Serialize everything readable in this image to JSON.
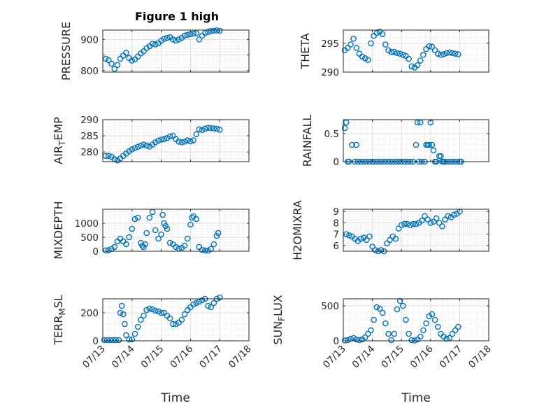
{
  "figure": {
    "title": "Figure 1 high",
    "time_label": "Time"
  },
  "date_ticks": [
    "07/13",
    "07/14",
    "07/15",
    "07/16",
    "07/17",
    "07/18"
  ],
  "chart_data": [
    {
      "type": "scatter",
      "id": "pressure",
      "ylabel_parts": [
        [
          "PRESSURE",
          null
        ]
      ],
      "ylim": [
        795,
        930
      ],
      "yticks": [
        800,
        850,
        900
      ],
      "ytick_labels": [
        "800",
        "",
        "900"
      ],
      "xlim": [
        0,
        5
      ],
      "grid": true,
      "minor_grid": true,
      "x": [
        0.1,
        0.2,
        0.3,
        0.4,
        0.5,
        0.6,
        0.7,
        0.8,
        0.9,
        1.0,
        1.1,
        1.2,
        1.3,
        1.4,
        1.5,
        1.6,
        1.7,
        1.8,
        1.9,
        2.0,
        2.1,
        2.2,
        2.3,
        2.4,
        2.5,
        2.6,
        2.7,
        2.8,
        2.9,
        3.0,
        3.1,
        3.2,
        3.3,
        3.4,
        3.5,
        3.6,
        3.7,
        3.8,
        3.9,
        4.0
      ],
      "y": [
        838,
        833,
        822,
        805,
        818,
        838,
        848,
        857,
        840,
        832,
        836,
        845,
        855,
        862,
        872,
        878,
        886,
        884,
        888,
        896,
        902,
        905,
        907,
        900,
        896,
        900,
        905,
        912,
        915,
        917,
        919,
        920,
        900,
        912,
        921,
        924,
        927,
        928,
        929,
        928
      ]
    },
    {
      "type": "scatter",
      "id": "theta",
      "ylabel_parts": [
        [
          "THETA",
          null
        ]
      ],
      "ylim": [
        290,
        297.3
      ],
      "yticks": [
        290,
        295
      ],
      "ytick_labels": [
        "290",
        "295"
      ],
      "xlim": [
        0,
        5
      ],
      "grid": true,
      "minor_grid": true,
      "x": [
        0.05,
        0.15,
        0.25,
        0.35,
        0.45,
        0.55,
        0.65,
        0.75,
        0.85,
        0.95,
        1.05,
        1.15,
        1.25,
        1.35,
        1.45,
        1.55,
        1.65,
        1.75,
        1.85,
        1.95,
        2.05,
        2.15,
        2.25,
        2.35,
        2.45,
        2.55,
        2.65,
        2.75,
        2.85,
        2.95,
        3.05,
        3.15,
        3.25,
        3.35,
        3.45,
        3.55,
        3.65,
        3.75,
        3.85,
        3.95
      ],
      "y": [
        293.8,
        294.2,
        294.8,
        295.8,
        294.2,
        293.2,
        292.7,
        292.4,
        292.1,
        295.0,
        296.3,
        296.8,
        297.0,
        296.6,
        294.8,
        293.8,
        293.5,
        293.5,
        293.3,
        293.2,
        293.0,
        292.8,
        292.3,
        291.0,
        290.8,
        291.2,
        292.0,
        293.0,
        294.0,
        294.5,
        294.4,
        293.8,
        293.2,
        293.0,
        293.1,
        293.3,
        293.4,
        293.3,
        293.2,
        293.1
      ]
    },
    {
      "type": "scatter",
      "id": "air_temp",
      "ylabel_parts": [
        [
          "AIR",
          null
        ],
        [
          "T",
          "sub"
        ],
        [
          "EMP",
          null
        ]
      ],
      "ylim": [
        277,
        290
      ],
      "yticks": [
        280,
        285,
        290
      ],
      "ytick_labels": [
        "280",
        "285",
        "290"
      ],
      "xlim": [
        0,
        5
      ],
      "grid": true,
      "minor_grid": true,
      "x": [
        0.1,
        0.2,
        0.3,
        0.4,
        0.5,
        0.6,
        0.7,
        0.8,
        0.9,
        1.0,
        1.1,
        1.2,
        1.3,
        1.4,
        1.5,
        1.6,
        1.7,
        1.8,
        1.9,
        2.0,
        2.1,
        2.2,
        2.3,
        2.4,
        2.5,
        2.6,
        2.7,
        2.8,
        2.9,
        3.0,
        3.1,
        3.2,
        3.3,
        3.4,
        3.5,
        3.6,
        3.7,
        3.8,
        3.9,
        4.0
      ],
      "y": [
        278.8,
        278.8,
        278.5,
        277.8,
        277.4,
        278.0,
        278.8,
        279.5,
        280.2,
        280.8,
        281.2,
        281.6,
        282.0,
        282.3,
        282.0,
        281.7,
        282.3,
        283.0,
        283.5,
        283.8,
        284.0,
        284.3,
        284.8,
        285.0,
        284.0,
        283.2,
        283.0,
        283.2,
        283.6,
        283.3,
        283.6,
        285.5,
        287.0,
        286.8,
        287.2,
        287.5,
        287.4,
        287.3,
        287.2,
        286.9
      ]
    },
    {
      "type": "scatter",
      "id": "rainfall",
      "ylabel_parts": [
        [
          "RAINFALL",
          null
        ]
      ],
      "ylim": [
        0,
        0.75
      ],
      "yticks": [
        0,
        0.5
      ],
      "ytick_labels": [
        "0",
        "0.5"
      ],
      "xlim": [
        0,
        5
      ],
      "grid": true,
      "minor_grid": true,
      "x": [
        0.05,
        0.1,
        0.15,
        0.2,
        0.3,
        0.4,
        0.45,
        0.5,
        0.6,
        0.7,
        0.8,
        0.9,
        1.0,
        1.1,
        1.2,
        1.3,
        1.4,
        1.5,
        1.6,
        1.7,
        1.8,
        1.9,
        2.0,
        2.1,
        2.2,
        2.3,
        2.4,
        2.5,
        2.55,
        2.6,
        2.65,
        2.7,
        2.8,
        2.85,
        2.9,
        2.95,
        3.0,
        3.05,
        3.1,
        3.15,
        3.2,
        3.3,
        3.35,
        3.4,
        3.45,
        3.5,
        3.6,
        3.7,
        3.8,
        3.9,
        4.0,
        4.05
      ],
      "y": [
        0.6,
        0.7,
        0,
        0,
        0.3,
        0,
        0.3,
        0,
        0,
        0,
        0,
        0,
        0,
        0,
        0,
        0,
        0,
        0,
        0,
        0,
        0,
        0,
        0,
        0,
        0,
        0,
        0,
        0.3,
        0.7,
        0,
        0.7,
        0,
        0,
        0.3,
        0.3,
        0.3,
        0.7,
        0.3,
        0.2,
        0,
        0,
        0.1,
        0.1,
        0,
        0,
        0,
        0,
        0,
        0,
        0,
        0,
        0
      ]
    },
    {
      "type": "scatter",
      "id": "mixdepth",
      "ylabel_parts": [
        [
          "MIXDEPTH",
          null
        ]
      ],
      "ylim": [
        0,
        1500
      ],
      "yticks": [
        0,
        500,
        1000
      ],
      "ytick_labels": [
        "0",
        "500",
        "1000"
      ],
      "xlim": [
        0,
        5
      ],
      "grid": true,
      "minor_grid": true,
      "x": [
        0.1,
        0.2,
        0.3,
        0.4,
        0.5,
        0.6,
        0.7,
        0.8,
        0.9,
        1.0,
        1.1,
        1.2,
        1.3,
        1.35,
        1.4,
        1.45,
        1.5,
        1.6,
        1.7,
        1.8,
        1.9,
        2.0,
        2.05,
        2.1,
        2.15,
        2.2,
        2.3,
        2.4,
        2.5,
        2.6,
        2.7,
        2.8,
        2.9,
        3.0,
        3.05,
        3.1,
        3.2,
        3.3,
        3.4,
        3.5,
        3.6,
        3.7,
        3.8,
        3.9,
        3.95
      ],
      "y": [
        30,
        40,
        80,
        150,
        350,
        450,
        350,
        250,
        500,
        800,
        1150,
        1200,
        300,
        200,
        150,
        250,
        650,
        1200,
        1400,
        750,
        450,
        600,
        1300,
        1000,
        900,
        800,
        300,
        250,
        150,
        100,
        120,
        200,
        450,
        950,
        1200,
        1250,
        1150,
        150,
        50,
        30,
        20,
        80,
        250,
        550,
        650
      ]
    },
    {
      "type": "scatter",
      "id": "h2omixra",
      "ylabel_parts": [
        [
          "H2OMIXRA",
          null
        ]
      ],
      "ylim": [
        5.5,
        9.2
      ],
      "yticks": [
        6,
        7,
        8,
        9
      ],
      "ytick_labels": [
        "6",
        "7",
        "8",
        "9"
      ],
      "xlim": [
        0,
        5
      ],
      "grid": true,
      "minor_grid": true,
      "x": [
        0.1,
        0.2,
        0.3,
        0.4,
        0.5,
        0.6,
        0.7,
        0.8,
        0.9,
        1.0,
        1.1,
        1.2,
        1.3,
        1.4,
        1.5,
        1.6,
        1.7,
        1.8,
        1.9,
        2.0,
        2.1,
        2.2,
        2.3,
        2.4,
        2.5,
        2.6,
        2.7,
        2.8,
        2.9,
        3.0,
        3.1,
        3.2,
        3.3,
        3.4,
        3.5,
        3.6,
        3.7,
        3.8,
        3.9,
        4.0
      ],
      "y": [
        7.0,
        6.9,
        6.8,
        6.6,
        6.4,
        6.6,
        6.7,
        6.5,
        6.8,
        5.9,
        5.6,
        5.5,
        5.6,
        5.5,
        6.2,
        6.5,
        6.8,
        6.6,
        7.5,
        7.8,
        7.9,
        7.9,
        7.8,
        7.9,
        7.9,
        8.0,
        8.2,
        8.6,
        8.3,
        8.0,
        8.1,
        8.4,
        8.0,
        7.7,
        8.3,
        8.6,
        8.5,
        8.7,
        8.8,
        9.0
      ]
    },
    {
      "type": "scatter",
      "id": "terr_msl",
      "ylabel_parts": [
        [
          "TERR",
          null
        ],
        [
          "M",
          "sub"
        ],
        [
          "SL",
          null
        ]
      ],
      "ylim": [
        0,
        300
      ],
      "yticks": [
        0,
        200
      ],
      "ytick_labels": [
        "0",
        "200"
      ],
      "xlim": [
        0,
        5
      ],
      "grid": true,
      "minor_grid": true,
      "x": [
        0.05,
        0.15,
        0.25,
        0.35,
        0.45,
        0.55,
        0.6,
        0.65,
        0.7,
        0.75,
        0.8,
        0.9,
        1.0,
        1.1,
        1.2,
        1.3,
        1.4,
        1.5,
        1.6,
        1.7,
        1.8,
        1.9,
        2.0,
        2.1,
        2.2,
        2.3,
        2.4,
        2.5,
        2.6,
        2.7,
        2.8,
        2.9,
        3.0,
        3.1,
        3.2,
        3.3,
        3.4,
        3.5,
        3.6,
        3.7,
        3.8,
        3.9,
        4.0
      ],
      "y": [
        5,
        5,
        5,
        5,
        5,
        5,
        200,
        250,
        190,
        120,
        40,
        10,
        10,
        50,
        100,
        150,
        180,
        220,
        230,
        225,
        215,
        210,
        200,
        200,
        180,
        160,
        120,
        120,
        130,
        150,
        190,
        220,
        240,
        260,
        270,
        280,
        290,
        300,
        250,
        240,
        270,
        300,
        310
      ]
    },
    {
      "type": "scatter",
      "id": "sun_flux",
      "ylabel_parts": [
        [
          "SUN",
          null
        ],
        [
          "F",
          "sub"
        ],
        [
          "LUX",
          null
        ]
      ],
      "ylim": [
        0,
        600
      ],
      "yticks": [
        0,
        500
      ],
      "ytick_labels": [
        "0",
        "500"
      ],
      "xlim": [
        0,
        5
      ],
      "grid": true,
      "minor_grid": true,
      "x": [
        0.05,
        0.15,
        0.25,
        0.35,
        0.45,
        0.55,
        0.65,
        0.75,
        0.85,
        0.95,
        1.05,
        1.15,
        1.25,
        1.35,
        1.45,
        1.55,
        1.65,
        1.75,
        1.85,
        1.95,
        2.05,
        2.15,
        2.25,
        2.35,
        2.45,
        2.55,
        2.65,
        2.75,
        2.85,
        2.95,
        3.05,
        3.15,
        3.25,
        3.35,
        3.45,
        3.55,
        3.65,
        3.75,
        3.85,
        3.95
      ],
      "y": [
        5,
        10,
        30,
        40,
        20,
        10,
        20,
        50,
        100,
        150,
        300,
        480,
        460,
        400,
        250,
        100,
        10,
        100,
        450,
        570,
        500,
        300,
        100,
        10,
        5,
        20,
        60,
        150,
        250,
        350,
        380,
        300,
        200,
        100,
        60,
        30,
        40,
        100,
        150,
        200
      ]
    }
  ],
  "style": {
    "marker_color": "#0072BD",
    "axis_color": "#262626",
    "grid_color": "#dcdcdc"
  }
}
